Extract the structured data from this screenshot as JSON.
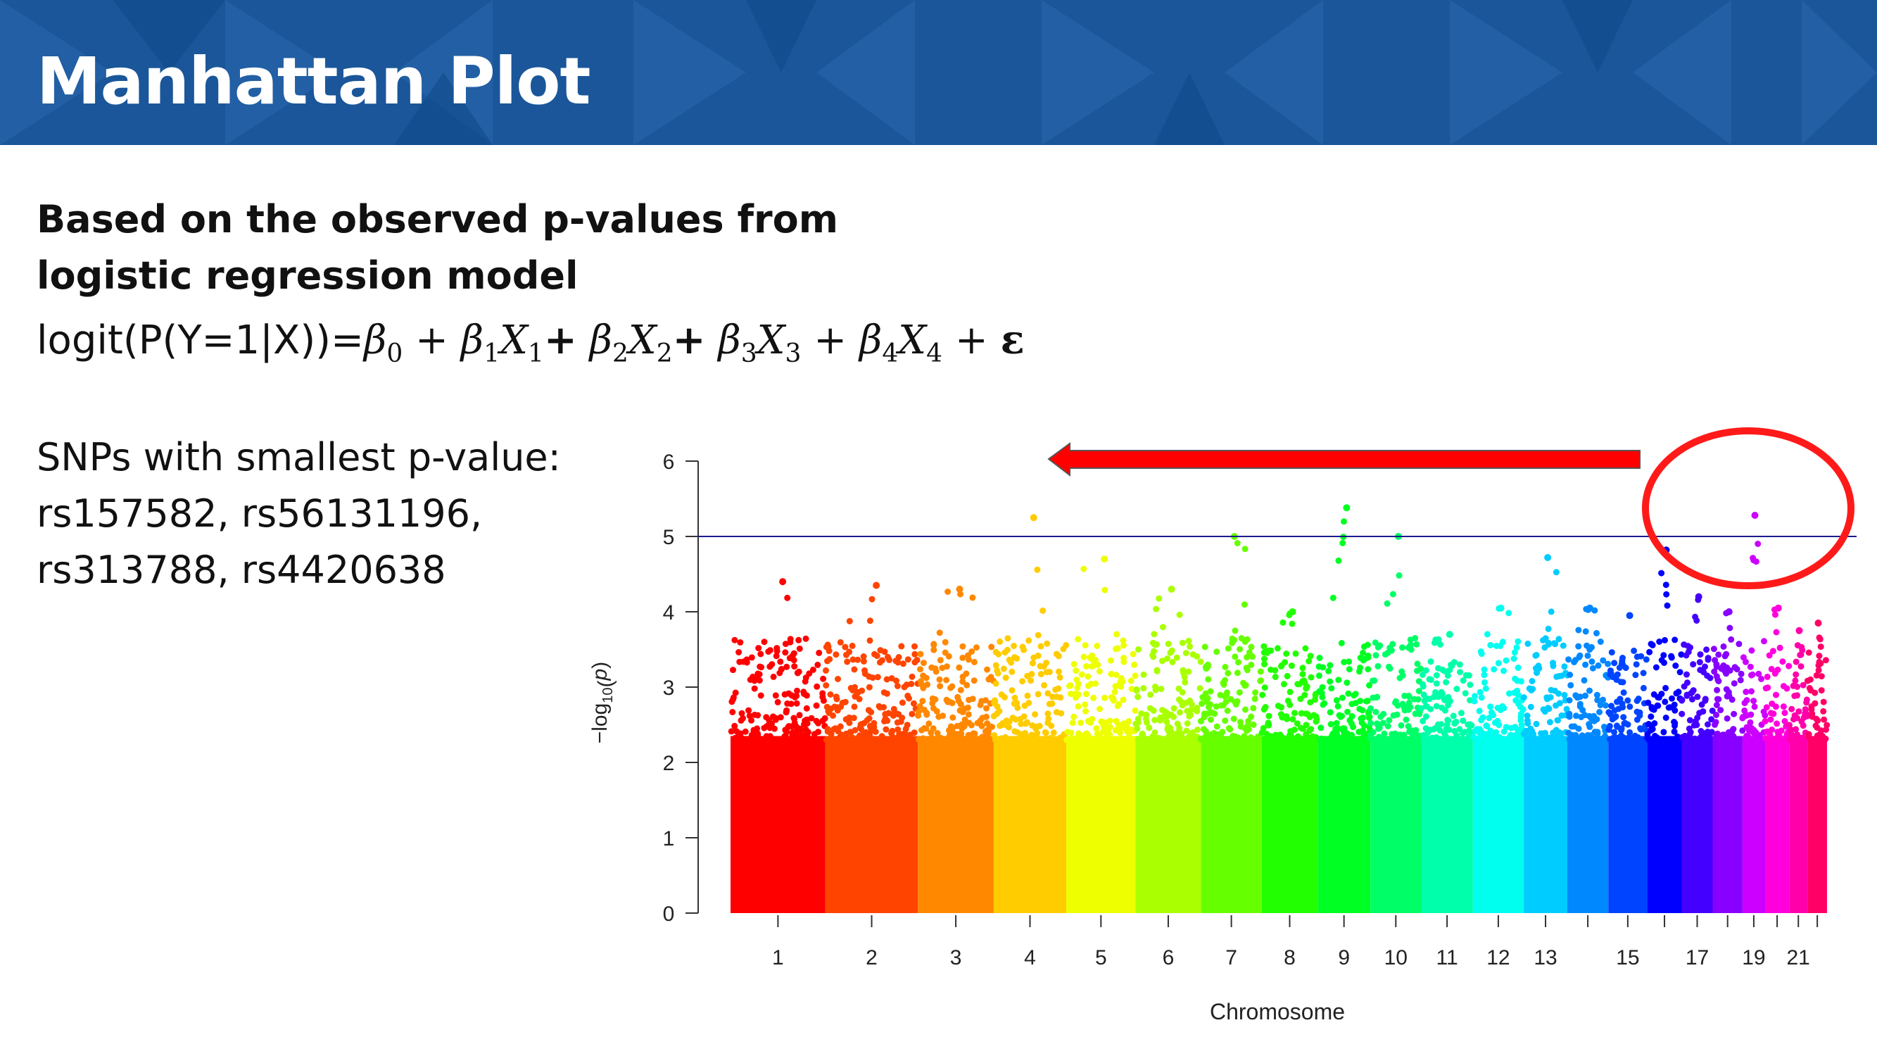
{
  "title": "Manhattan Plot",
  "subtitle": "Based on the observed p-values from logistic regression model",
  "formula": {
    "lhs": "logit(P(Y=1|X))=",
    "terms": [
      {
        "sym": "β",
        "sub": "0",
        "op_before": ""
      },
      {
        "sym": "β",
        "sub": "1",
        "var": "X",
        "var_sub": "1",
        "op_before": "+"
      },
      {
        "sym": "β",
        "sub": "2",
        "var": "X",
        "var_sub": "2",
        "op_before": "+"
      },
      {
        "sym": "β",
        "sub": "3",
        "var": "X",
        "var_sub": "3",
        "op_before": "+"
      },
      {
        "sym": "β",
        "sub": "4",
        "var": "X",
        "var_sub": "4",
        "op_before": "+"
      }
    ],
    "error": "ε"
  },
  "snps": {
    "label": "SNPs with smallest  p-value:",
    "line1": "rs157582, rs56131196,",
    "line2": "rs313788, rs4420638"
  },
  "colors": {
    "header": "#1a5699",
    "threshold_line": "#1a1a8c",
    "arrow": "#ff0000",
    "circle": "#ff1a1a"
  },
  "chart_data": {
    "type": "scatter",
    "title": "",
    "xlabel": "Chromosome",
    "ylabel": "−log10(p)",
    "ylim": [
      0,
      6
    ],
    "yticks": [
      0,
      1,
      2,
      3,
      4,
      5,
      6
    ],
    "xtick_labels": [
      "1",
      "2",
      "3",
      "4",
      "5",
      "6",
      "7",
      "8",
      "9",
      "10",
      "11",
      "12",
      "13",
      "15",
      "17",
      "19",
      "21"
    ],
    "threshold": 5,
    "chromosomes": [
      {
        "chr": "1",
        "peak": 4.4,
        "color": "#ff0000"
      },
      {
        "chr": "2",
        "peak": 4.35,
        "color": "#ff4400"
      },
      {
        "chr": "3",
        "peak": 4.3,
        "color": "#ff8800"
      },
      {
        "chr": "4",
        "peak": 5.25,
        "color": "#ffcc00"
      },
      {
        "chr": "5",
        "peak": 4.7,
        "color": "#eeff00"
      },
      {
        "chr": "6",
        "peak": 4.3,
        "color": "#aaff00"
      },
      {
        "chr": "7",
        "peak": 5.0,
        "color": "#66ff00"
      },
      {
        "chr": "8",
        "peak": 4.0,
        "color": "#22ff00"
      },
      {
        "chr": "9",
        "peak": 5.38,
        "color": "#00ff22"
      },
      {
        "chr": "10",
        "peak": 5.0,
        "color": "#00ff66"
      },
      {
        "chr": "11",
        "peak": 3.7,
        "color": "#00ffaa"
      },
      {
        "chr": "12",
        "peak": 4.05,
        "color": "#00ffee"
      },
      {
        "chr": "13",
        "peak": 4.72,
        "color": "#00ccff"
      },
      {
        "chr": "14",
        "peak": 4.05,
        "color": "#0088ff"
      },
      {
        "chr": "15",
        "peak": 3.95,
        "color": "#0044ff"
      },
      {
        "chr": "16",
        "peak": 4.82,
        "color": "#0000ff"
      },
      {
        "chr": "17",
        "peak": 4.2,
        "color": "#4400ff"
      },
      {
        "chr": "18",
        "peak": 4.0,
        "color": "#8800ff"
      },
      {
        "chr": "19",
        "peak": 5.28,
        "color": "#cc00ff"
      },
      {
        "chr": "20",
        "peak": 4.05,
        "color": "#ff00dd"
      },
      {
        "chr": "21",
        "peak": 3.75,
        "color": "#ff00aa"
      },
      {
        "chr": "22",
        "peak": 3.85,
        "color": "#ff0066"
      }
    ]
  }
}
